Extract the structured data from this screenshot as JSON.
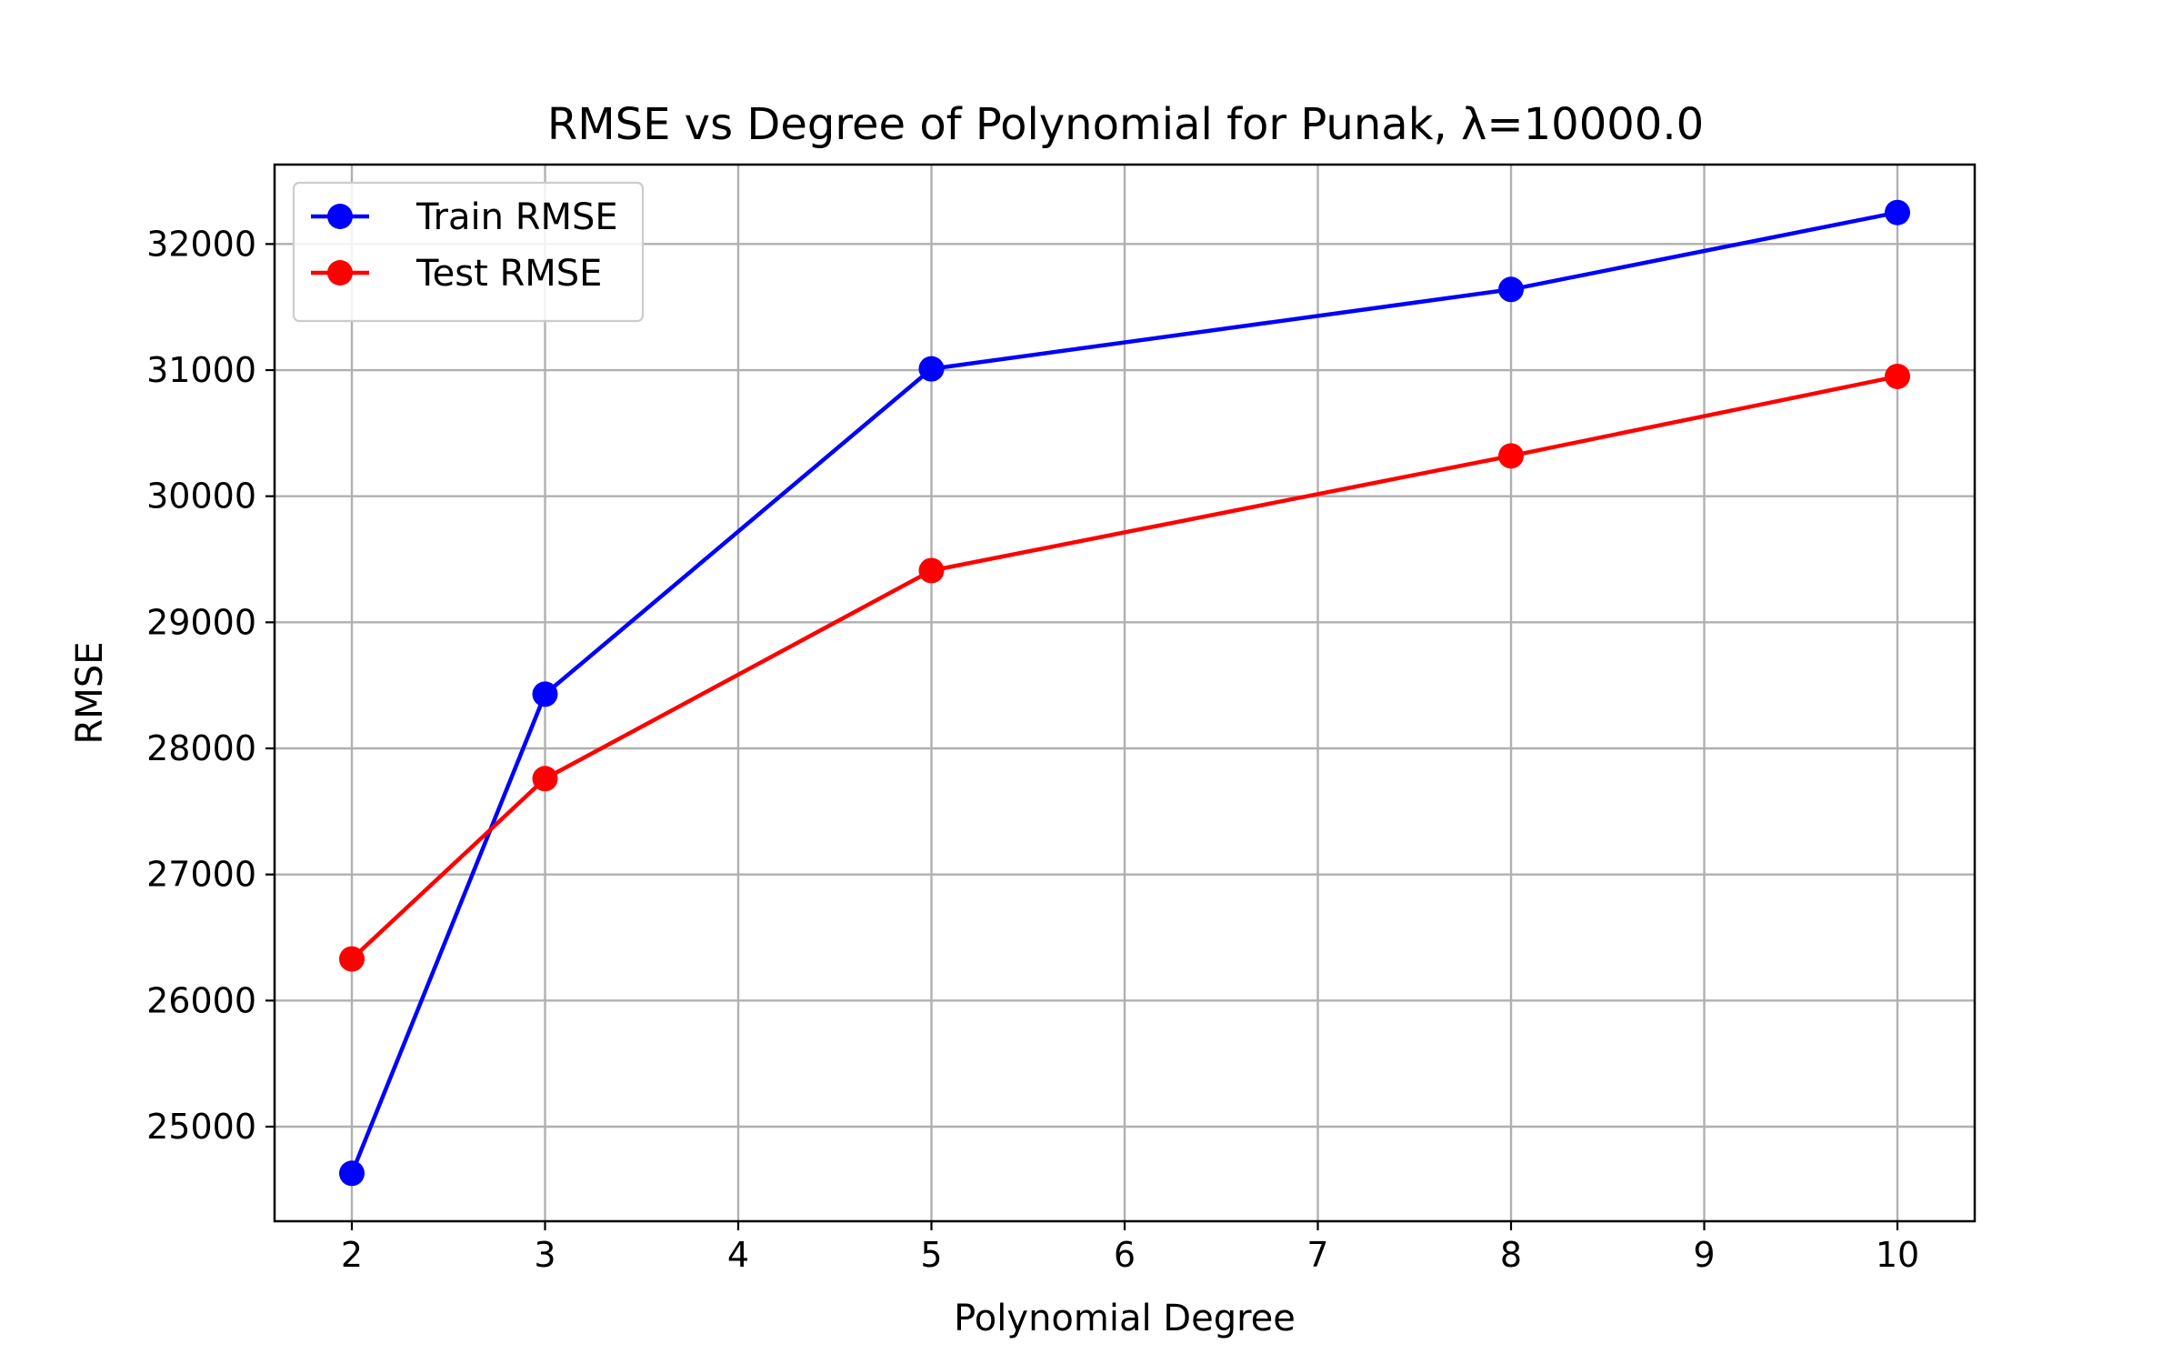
{
  "chart_data": {
    "type": "line",
    "title": "RMSE vs Degree of Polynomial for Punak, λ=10000.0",
    "xlabel": "Polynomial Degree",
    "ylabel": "RMSE",
    "x": [
      2,
      3,
      5,
      8,
      10
    ],
    "xticks": [
      2,
      3,
      4,
      5,
      6,
      7,
      8,
      9,
      10
    ],
    "xtick_labels": [
      "2",
      "3",
      "4",
      "5",
      "6",
      "7",
      "8",
      "9",
      "10"
    ],
    "yticks": [
      25000,
      26000,
      27000,
      28000,
      29000,
      30000,
      31000,
      32000
    ],
    "ytick_labels": [
      "25000",
      "26000",
      "27000",
      "28000",
      "29000",
      "30000",
      "31000",
      "32000"
    ],
    "xlim": [
      1.6,
      10.4
    ],
    "ylim": [
      24250,
      32630
    ],
    "grid": true,
    "legend_position": "upper-left",
    "series": [
      {
        "name": "Train RMSE",
        "color": "#0000ff",
        "marker": "circle",
        "values": [
          24630,
          28430,
          31010,
          31640,
          32250
        ]
      },
      {
        "name": "Test RMSE",
        "color": "#ff0000",
        "marker": "circle",
        "values": [
          26330,
          27760,
          29410,
          30320,
          30950
        ]
      }
    ]
  }
}
